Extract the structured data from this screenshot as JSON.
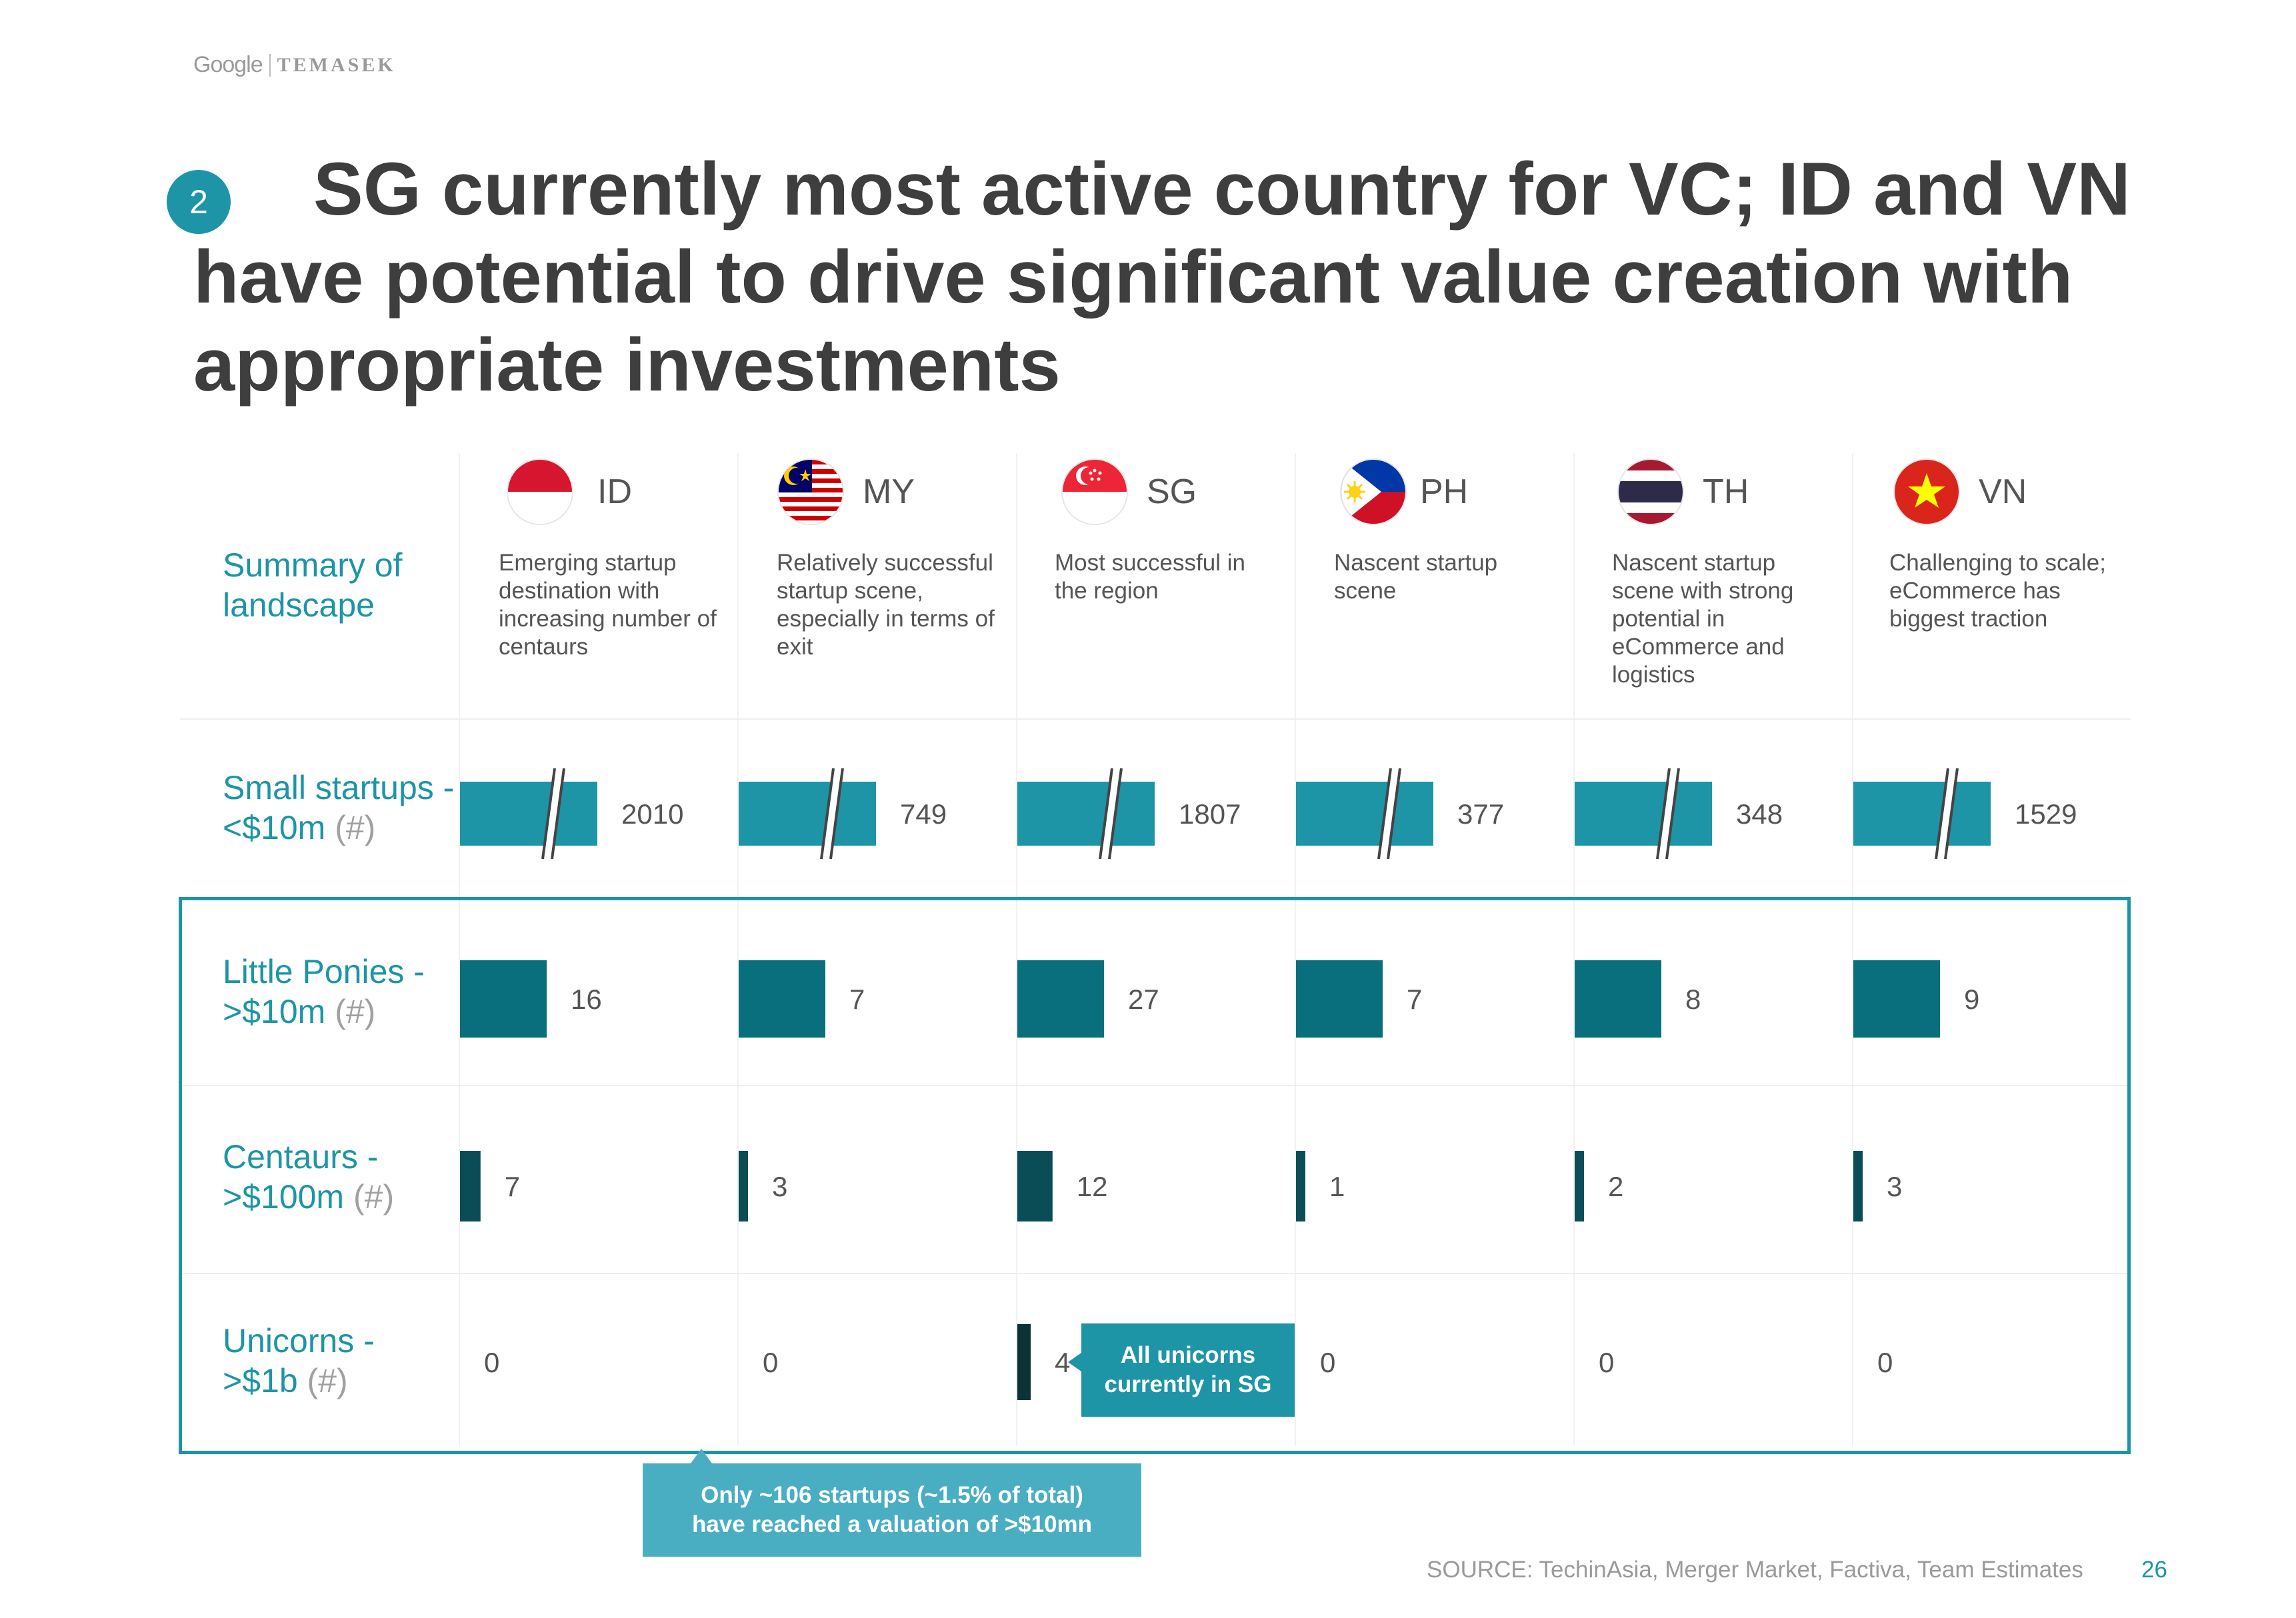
{
  "header": {
    "brand_google": "Google",
    "brand_partner": "TEMASEK"
  },
  "slide": {
    "badge": "2",
    "title": "SG currently most active country for VC; ID and VN have potential to drive significant value creation with appropriate investments",
    "source": "SOURCE: TechinAsia, Merger Market, Factiva, Team Estimates",
    "page_number": "26"
  },
  "rows": {
    "summary": {
      "label": "Summary of landscape"
    },
    "small": {
      "label": "Small startups - <$10m",
      "unit": "(#)"
    },
    "ponies": {
      "label_line1": "Little Ponies -",
      "label_line2": ">$10m",
      "unit": "(#)"
    },
    "centaurs": {
      "label_line1": "Centaurs -",
      "label_line2": ">$100m",
      "unit": "(#)"
    },
    "unicorns": {
      "label_line1": "Unicorns -",
      "label_line2": ">$1b",
      "unit": "(#)"
    }
  },
  "countries": [
    {
      "code": "ID",
      "flag_icon": "indonesia-flag-icon",
      "summary": "Emerging startup destination with increasing number of centaurs"
    },
    {
      "code": "MY",
      "flag_icon": "malaysia-flag-icon",
      "summary": "Relatively successful startup scene, especially in terms of exit"
    },
    {
      "code": "SG",
      "flag_icon": "singapore-flag-icon",
      "summary": "Most successful in the region"
    },
    {
      "code": "PH",
      "flag_icon": "philippines-flag-icon",
      "summary": "Nascent startup scene"
    },
    {
      "code": "TH",
      "flag_icon": "thailand-flag-icon",
      "summary": "Nascent startup scene with strong potential in eCommerce and logistics"
    },
    {
      "code": "VN",
      "flag_icon": "vietnam-flag-icon",
      "summary": "Challenging to scale; eCommerce has biggest traction"
    }
  ],
  "chart_data": {
    "type": "bar",
    "categories": [
      "ID",
      "MY",
      "SG",
      "PH",
      "TH",
      "VN"
    ],
    "series": [
      {
        "name": "Small startups - <$10m (#)",
        "values": [
          2010,
          749,
          1807,
          377,
          348,
          1529
        ],
        "color": "#1d95a6",
        "axis_break": true
      },
      {
        "name": "Little Ponies - >$10m (#)",
        "values": [
          16,
          7,
          27,
          7,
          8,
          9
        ],
        "color": "#0a6f7c"
      },
      {
        "name": "Centaurs - >$100m (#)",
        "values": [
          7,
          3,
          12,
          1,
          2,
          3
        ],
        "color": "#0a4d56"
      },
      {
        "name": "Unicorns - >$1b (#)",
        "values": [
          0,
          0,
          4,
          0,
          0,
          0
        ],
        "color": "#0a3338"
      }
    ],
    "annotations": [
      "All unicorns currently in SG",
      "Only ~106 startups (~1.5% of total) have reached a valuation of >$10mn"
    ]
  },
  "callouts": {
    "unicorns_sg_line1": "All unicorns",
    "unicorns_sg_line2": "currently in SG",
    "valuation_line1": "Only ~106 startups (~1.5% of total)",
    "valuation_line2": "have reached a valuation of >$10mn"
  }
}
